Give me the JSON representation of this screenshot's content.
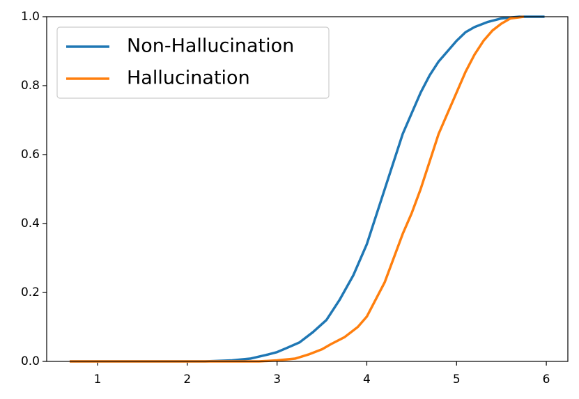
{
  "chart_data": {
    "type": "line",
    "xlim": [
      0.433,
      6.24
    ],
    "ylim": [
      0,
      1.0
    ],
    "xticks": [
      1,
      2,
      3,
      4,
      5,
      6
    ],
    "yticks": [
      {
        "value": 0,
        "label": "0.0"
      },
      {
        "value": 0.2,
        "label": "0.2"
      },
      {
        "value": 0.4,
        "label": "0.4"
      },
      {
        "value": 0.6,
        "label": "0.6"
      },
      {
        "value": 0.8,
        "label": "0.8"
      },
      {
        "value": 1.0,
        "label": "1.0"
      }
    ],
    "grid": false,
    "legend": "upper left",
    "series": [
      {
        "name": "Non-Hallucination",
        "color": "#1f77b4",
        "x": [
          0.69,
          2.2,
          2.5,
          2.7,
          2.9,
          3.0,
          3.1,
          3.25,
          3.4,
          3.55,
          3.7,
          3.85,
          4.0,
          4.1,
          4.2,
          4.3,
          4.4,
          4.5,
          4.6,
          4.7,
          4.8,
          4.9,
          5.0,
          5.1,
          5.2,
          5.35,
          5.5,
          5.7,
          5.98
        ],
        "values": [
          0,
          0,
          0.003,
          0.008,
          0.02,
          0.027,
          0.038,
          0.055,
          0.085,
          0.12,
          0.18,
          0.25,
          0.34,
          0.42,
          0.5,
          0.58,
          0.66,
          0.72,
          0.78,
          0.83,
          0.87,
          0.9,
          0.93,
          0.955,
          0.97,
          0.985,
          0.995,
          1.0,
          1.0
        ]
      },
      {
        "name": "Hallucination",
        "color": "#ff7f0e",
        "x": [
          0.69,
          2.8,
          3.0,
          3.2,
          3.35,
          3.5,
          3.6,
          3.75,
          3.9,
          4.0,
          4.1,
          4.2,
          4.3,
          4.4,
          4.5,
          4.6,
          4.7,
          4.8,
          4.9,
          5.0,
          5.1,
          5.2,
          5.3,
          5.4,
          5.5,
          5.6,
          5.75
        ],
        "values": [
          0,
          0,
          0.003,
          0.008,
          0.02,
          0.035,
          0.05,
          0.07,
          0.1,
          0.13,
          0.18,
          0.23,
          0.3,
          0.37,
          0.43,
          0.5,
          0.58,
          0.66,
          0.72,
          0.78,
          0.84,
          0.89,
          0.93,
          0.96,
          0.98,
          0.995,
          1.0
        ]
      }
    ]
  }
}
